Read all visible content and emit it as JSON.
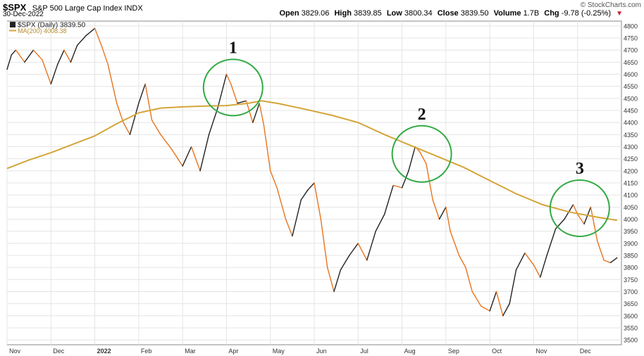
{
  "header": {
    "symbol": "$SPX",
    "name": "S&P 500 Large Cap Index",
    "exchange": "INDX",
    "date": "30-Dec-2022",
    "watermark": "© StockCharts.com",
    "open_label": "Open",
    "open": "3829.06",
    "high_label": "High",
    "high": "3839.85",
    "low_label": "Low",
    "low": "3800.34",
    "close_label": "Close",
    "close": "3839.50",
    "volume_label": "Volume",
    "volume": "1.7B",
    "chg_label": "Chg",
    "chg": "-9.78 (-0.25%)",
    "chg_arrow": "▼"
  },
  "legend": {
    "price": "$SPX (Daily) 3839.50",
    "ma": "MA(200) 4008.38"
  },
  "colors": {
    "up": "#222222",
    "down": "#e8741e",
    "ma": "#d4a537",
    "circle": "#33aa44",
    "grid": "#e4e4e4"
  },
  "chart_data": {
    "type": "line",
    "y_axis_side": "right",
    "ylim": [
      3480,
      4820
    ],
    "y_ticks": [
      3500,
      3550,
      3600,
      3650,
      3700,
      3750,
      3800,
      3850,
      3900,
      3950,
      4000,
      4050,
      4100,
      4150,
      4200,
      4250,
      4300,
      4350,
      4400,
      4450,
      4500,
      4550,
      4600,
      4650,
      4700,
      4750,
      4800
    ],
    "x_range": [
      0,
      14
    ],
    "x_ticks": [
      {
        "x": 0,
        "label": "Nov"
      },
      {
        "x": 1,
        "label": "Dec"
      },
      {
        "x": 2,
        "label": "2022"
      },
      {
        "x": 3,
        "label": "Feb"
      },
      {
        "x": 4,
        "label": "Mar"
      },
      {
        "x": 5,
        "label": "Apr"
      },
      {
        "x": 6,
        "label": "May"
      },
      {
        "x": 7,
        "label": "Jun"
      },
      {
        "x": 8,
        "label": "Jul"
      },
      {
        "x": 9,
        "label": "Aug"
      },
      {
        "x": 10,
        "label": "Sep"
      },
      {
        "x": 11,
        "label": "Oct"
      },
      {
        "x": 12,
        "label": "Nov"
      },
      {
        "x": 13,
        "label": "Dec"
      }
    ],
    "price_path": [
      [
        0.0,
        4620
      ],
      [
        0.1,
        4680
      ],
      [
        0.2,
        4700
      ],
      [
        0.4,
        4650
      ],
      [
        0.6,
        4700
      ],
      [
        0.8,
        4660
      ],
      [
        1.0,
        4560
      ],
      [
        1.15,
        4640
      ],
      [
        1.3,
        4700
      ],
      [
        1.45,
        4650
      ],
      [
        1.6,
        4720
      ],
      [
        1.8,
        4760
      ],
      [
        2.0,
        4790
      ],
      [
        2.15,
        4720
      ],
      [
        2.3,
        4640
      ],
      [
        2.5,
        4480
      ],
      [
        2.65,
        4400
      ],
      [
        2.8,
        4350
      ],
      [
        3.0,
        4480
      ],
      [
        3.15,
        4560
      ],
      [
        3.3,
        4410
      ],
      [
        3.5,
        4350
      ],
      [
        3.75,
        4290
      ],
      [
        4.0,
        4220
      ],
      [
        4.2,
        4300
      ],
      [
        4.4,
        4200
      ],
      [
        4.6,
        4350
      ],
      [
        4.8,
        4460
      ],
      [
        5.0,
        4600
      ],
      [
        5.1,
        4560
      ],
      [
        5.25,
        4480
      ],
      [
        5.45,
        4490
      ],
      [
        5.6,
        4400
      ],
      [
        5.75,
        4480
      ],
      [
        5.85,
        4390
      ],
      [
        6.0,
        4200
      ],
      [
        6.15,
        4130
      ],
      [
        6.35,
        4000
      ],
      [
        6.5,
        3930
      ],
      [
        6.7,
        4080
      ],
      [
        6.85,
        4120
      ],
      [
        7.0,
        4150
      ],
      [
        7.15,
        4000
      ],
      [
        7.3,
        3800
      ],
      [
        7.45,
        3700
      ],
      [
        7.6,
        3790
      ],
      [
        7.8,
        3850
      ],
      [
        8.0,
        3900
      ],
      [
        8.2,
        3830
      ],
      [
        8.4,
        3950
      ],
      [
        8.6,
        4020
      ],
      [
        8.8,
        4140
      ],
      [
        9.0,
        4130
      ],
      [
        9.15,
        4200
      ],
      [
        9.3,
        4300
      ],
      [
        9.4,
        4280
      ],
      [
        9.55,
        4230
      ],
      [
        9.7,
        4080
      ],
      [
        9.85,
        4000
      ],
      [
        10.0,
        4050
      ],
      [
        10.1,
        3950
      ],
      [
        10.3,
        3850
      ],
      [
        10.45,
        3800
      ],
      [
        10.6,
        3700
      ],
      [
        10.8,
        3640
      ],
      [
        11.0,
        3620
      ],
      [
        11.15,
        3700
      ],
      [
        11.3,
        3600
      ],
      [
        11.45,
        3650
      ],
      [
        11.6,
        3790
      ],
      [
        11.8,
        3860
      ],
      [
        12.0,
        3810
      ],
      [
        12.15,
        3760
      ],
      [
        12.3,
        3850
      ],
      [
        12.5,
        3960
      ],
      [
        12.7,
        4000
      ],
      [
        12.9,
        4060
      ],
      [
        13.0,
        4020
      ],
      [
        13.15,
        3980
      ],
      [
        13.3,
        4050
      ],
      [
        13.45,
        3910
      ],
      [
        13.6,
        3830
      ],
      [
        13.75,
        3820
      ],
      [
        13.9,
        3840
      ]
    ],
    "ma200_path": [
      [
        0.0,
        4210
      ],
      [
        0.5,
        4245
      ],
      [
        1.0,
        4275
      ],
      [
        1.5,
        4310
      ],
      [
        2.0,
        4345
      ],
      [
        2.5,
        4395
      ],
      [
        3.0,
        4440
      ],
      [
        3.5,
        4460
      ],
      [
        4.0,
        4465
      ],
      [
        4.5,
        4468
      ],
      [
        5.0,
        4470
      ],
      [
        5.5,
        4480
      ],
      [
        5.8,
        4490
      ],
      [
        6.2,
        4478
      ],
      [
        6.8,
        4455
      ],
      [
        7.4,
        4430
      ],
      [
        8.0,
        4400
      ],
      [
        8.6,
        4350
      ],
      [
        9.2,
        4305
      ],
      [
        9.8,
        4260
      ],
      [
        10.4,
        4215
      ],
      [
        11.0,
        4160
      ],
      [
        11.6,
        4105
      ],
      [
        12.2,
        4060
      ],
      [
        12.8,
        4030
      ],
      [
        13.4,
        4010
      ],
      [
        13.9,
        3995
      ]
    ],
    "annotations": [
      {
        "label": "1",
        "x": 5.15,
        "y": 4545
      },
      {
        "label": "2",
        "x": 9.45,
        "y": 4270
      },
      {
        "label": "3",
        "x": 13.05,
        "y": 4045
      }
    ]
  }
}
